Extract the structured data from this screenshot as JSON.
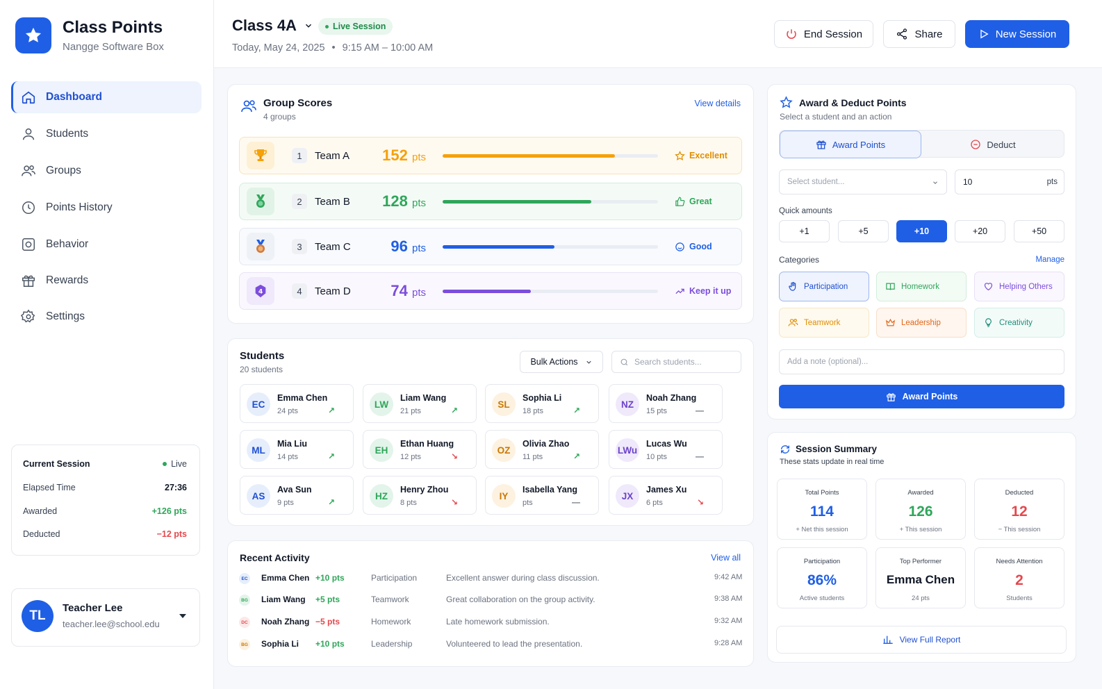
{
  "app": {
    "name": "Class Points",
    "subtitle": "Nangge Software Box",
    "logo_icon": "star-icon",
    "accent": "#1f5fe6"
  },
  "sidebar": {
    "items": [
      {
        "label": "Dashboard",
        "icon": "home-icon",
        "active": true
      },
      {
        "label": "Students",
        "icon": "user-icon"
      },
      {
        "label": "Groups",
        "icon": "users-icon"
      },
      {
        "label": "Points History",
        "icon": "clock-icon"
      },
      {
        "label": "Behavior",
        "icon": "target-icon"
      },
      {
        "label": "Rewards",
        "icon": "gift-icon"
      },
      {
        "label": "Settings",
        "icon": "gear-icon"
      }
    ],
    "current_session": {
      "title": "Current Session",
      "status": "Live",
      "rows": [
        {
          "label": "Elapsed Time",
          "value": "27:36"
        },
        {
          "label": "Awarded",
          "value": "+126 pts"
        },
        {
          "label": "Deducted",
          "value": "−12 pts"
        }
      ]
    },
    "user": {
      "initials": "TL",
      "name": "Teacher Lee",
      "email": "teacher.lee@school.edu"
    }
  },
  "header": {
    "class_name": "Class 4A",
    "live_badge": "Live Session",
    "date": "Today, May 24, 2025",
    "separator": "•",
    "time": "9:15 AM – 10:00 AM",
    "end_label": "End Session",
    "share_label": "Share",
    "new_label": "New Session"
  },
  "group_scores": {
    "title": "Group Scores",
    "subtitle": "4 groups",
    "link": "View details",
    "unit": "pts",
    "teams": [
      {
        "rank": "1",
        "name": "Team A",
        "points": 152,
        "progress": 0.8,
        "status": "Excellent",
        "color": "#f5a10a",
        "icon": "trophy-icon"
      },
      {
        "rank": "2",
        "name": "Team B",
        "points": 128,
        "progress": 0.69,
        "status": "Great",
        "color": "#2fa65a",
        "icon": "medal-icon"
      },
      {
        "rank": "3",
        "name": "Team C",
        "points": 96,
        "progress": 0.52,
        "status": "Good",
        "color": "#1f5fe6",
        "icon": "bronze-medal-icon"
      },
      {
        "rank": "4",
        "name": "Team D",
        "points": 74,
        "progress": 0.41,
        "status": "Keep it up",
        "color": "#7c4ddb",
        "icon": "badge-icon"
      }
    ]
  },
  "students": {
    "title": "Students",
    "subtitle": "20 students",
    "bulk_label": "Bulk Actions",
    "search_placeholder": "Search students...",
    "list": [
      {
        "initials": "EC",
        "name": "Emma Chen",
        "pts": "24 pts",
        "trend": "up"
      },
      {
        "initials": "LW",
        "name": "Liam Wang",
        "pts": "21 pts",
        "trend": "up"
      },
      {
        "initials": "SL",
        "name": "Sophia Li",
        "pts": "18 pts",
        "trend": "up"
      },
      {
        "initials": "NZ",
        "name": "Noah Zhang",
        "pts": "15 pts",
        "trend": "flat"
      },
      {
        "initials": "ML",
        "name": "Mia Liu",
        "pts": "14 pts",
        "trend": "up"
      },
      {
        "initials": "EH",
        "name": "Ethan Huang",
        "pts": "12 pts",
        "trend": "down"
      },
      {
        "initials": "OZ",
        "name": "Olivia Zhao",
        "pts": "11 pts",
        "trend": "up"
      },
      {
        "initials": "LWu",
        "name": "Lucas Wu",
        "pts": "10 pts",
        "trend": "flat"
      },
      {
        "initials": "AS",
        "name": "Ava Sun",
        "pts": "9 pts",
        "trend": "up"
      },
      {
        "initials": "HZ",
        "name": "Henry Zhou",
        "pts": "8 pts",
        "trend": "down"
      },
      {
        "initials": "IY",
        "name": "Isabella Yang",
        "pts": "pts",
        "trend": "flat"
      },
      {
        "initials": "JX",
        "name": "James Xu",
        "pts": "6 pts",
        "trend": "down"
      }
    ]
  },
  "activity": {
    "title": "Recent Activity",
    "link": "View all",
    "rows": [
      {
        "initials": "EC",
        "name": "Emma Chen",
        "delta": "+10 pts",
        "positive": true,
        "category": "Participation",
        "note": "Excellent answer during class discussion.",
        "time": "9:42 AM"
      },
      {
        "initials": "BG",
        "name": "Liam Wang",
        "delta": "+5 pts",
        "positive": true,
        "category": "Teamwork",
        "note": "Great collaboration on the group activity.",
        "time": "9:38 AM"
      },
      {
        "initials": "DC",
        "name": "Noah Zhang",
        "delta": "−5 pts",
        "positive": false,
        "category": "Homework",
        "note": "Late homework submission.",
        "time": "9:32 AM"
      },
      {
        "initials": "BG",
        "name": "Sophia Li",
        "delta": "+10 pts",
        "positive": true,
        "category": "Leadership",
        "note": "Volunteered to lead the presentation.",
        "time": "9:28 AM"
      }
    ]
  },
  "award": {
    "title": "Award & Deduct Points",
    "subtitle": "Select a student and an action",
    "award_tab": "Award Points",
    "deduct_tab": "Deduct",
    "student_placeholder": "Select student...",
    "amount": "10",
    "unit": "pts",
    "quick_label": "Quick amounts",
    "quick": [
      "+1",
      "+5",
      "+10",
      "+20",
      "+50"
    ],
    "quick_selected": "+10",
    "categories_label": "Categories",
    "manage": "Manage",
    "categories": [
      {
        "label": "Participation",
        "icon": "hand-icon"
      },
      {
        "label": "Homework",
        "icon": "book-icon"
      },
      {
        "label": "Helping Others",
        "icon": "heart-icon"
      },
      {
        "label": "Teamwork",
        "icon": "users-icon"
      },
      {
        "label": "Leadership",
        "icon": "crown-icon"
      },
      {
        "label": "Creativity",
        "icon": "lightbulb-icon"
      }
    ],
    "note_placeholder": "Add a note (optional)...",
    "submit": "Award Points"
  },
  "summary": {
    "title": "Session Summary",
    "subtitle": "These stats update in real time",
    "stats": [
      {
        "label": "Total Points",
        "value": "114",
        "sub": "+ Net this session",
        "color": "#1f5fe6"
      },
      {
        "label": "Awarded",
        "value": "126",
        "sub": "+ This session",
        "color": "#2fa65a"
      },
      {
        "label": "Deducted",
        "value": "12",
        "sub": "− This session",
        "color": "#e5484d"
      },
      {
        "label": "Participation",
        "value": "86%",
        "sub": "Active students",
        "color": "#1f5fe6"
      },
      {
        "label": "Top Performer",
        "value": "Emma Chen",
        "sub": "24 pts",
        "color": "#111827"
      },
      {
        "label": "Needs Attention",
        "value": "2",
        "sub": "Students",
        "color": "#e5484d"
      }
    ],
    "report": "View Full Report"
  }
}
